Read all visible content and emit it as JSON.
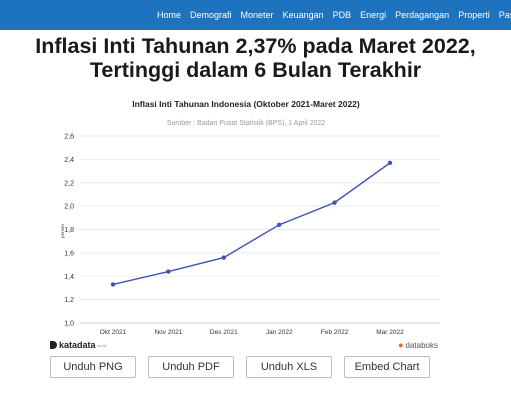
{
  "nav": {
    "items": [
      "Home",
      "Demografi",
      "Moneter",
      "Keuangan",
      "PDB",
      "Energi",
      "Perdagangan",
      "Properti",
      "Pasar"
    ]
  },
  "headline": "Inflasi Inti Tahunan 2,37% pada Maret 2022, Tertinggi dalam 6 Bulan Terakhir",
  "brand": {
    "left": "katadata",
    "left_suffix": ".co.id",
    "right": "databoks"
  },
  "buttons": {
    "png": "Unduh PNG",
    "pdf": "Unduh PDF",
    "xls": "Unduh XLS",
    "embed": "Embed Chart"
  },
  "colors": {
    "nav_bg": "#1e73be",
    "line": "#3f51b5",
    "grid": "#e6e6e6"
  },
  "chart_data": {
    "type": "line",
    "title": "Inflasi Inti Tahunan Indonesia (Oktober 2021-Maret 2022)",
    "subtitle": "Sumber : Badan Pusat Statistik (BPS), 1 April 2022",
    "ylabel": "persen",
    "xlabel": "",
    "categories": [
      "Okt 2021",
      "Nov 2021",
      "Des 2021",
      "Jan 2022",
      "Feb 2022",
      "Mar 2022"
    ],
    "values": [
      1.33,
      1.44,
      1.56,
      1.84,
      2.03,
      2.37
    ],
    "ylim": [
      1.0,
      2.6
    ],
    "yticks": [
      "1,0",
      "1,2",
      "1,4",
      "1,6",
      "1,8",
      "2,0",
      "2,2",
      "2,4",
      "2,6"
    ],
    "grid": true,
    "legend": "none"
  }
}
